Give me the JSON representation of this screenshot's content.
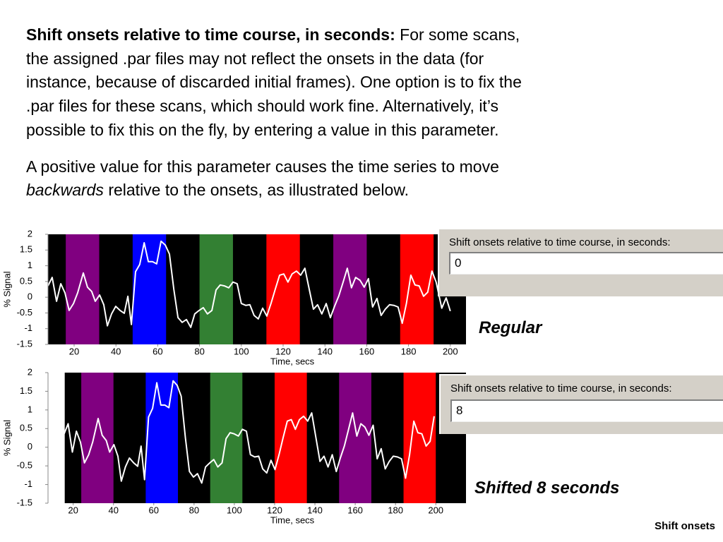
{
  "text": {
    "paragraph1": {
      "lead": "Shift onsets relative to time course, in seconds:",
      "lines": [
        "For some scans,",
        "the assigned .par files may not reflect the onsets in the data (for",
        "instance, because of discarded initial frames). One option is to fix the",
        ".par files for these scans, which should work fine. Alternatively, it’s",
        "possible to fix this on the fly, by entering a value in this parameter."
      ]
    },
    "paragraph2": {
      "line1": "A positive value for this parameter causes the time series to move",
      "emphasis": "backwards",
      "rest": "relative to the onsets, as illustrated below."
    }
  },
  "widgets": [
    {
      "label": "Shift onsets relative to time course, in seconds:",
      "value": "0"
    },
    {
      "label": "Shift onsets relative to time course, in seconds:",
      "value": "8"
    }
  ],
  "captions": [
    "Regular",
    "Shifted 8 seconds"
  ],
  "footer": "Shift onsets",
  "chart_data": [
    {
      "type": "line",
      "xlabel": "Time, secs",
      "ylabel": "% Signal",
      "xlim": [
        7.5,
        207.5
      ],
      "ylim": [
        -1.5,
        2
      ],
      "xticks": [
        20,
        40,
        60,
        80,
        100,
        120,
        140,
        160,
        180,
        200
      ],
      "yticks": [
        2,
        1.5,
        1,
        0.5,
        0,
        -0.5,
        -1,
        -1.5
      ],
      "background": {
        "start": 7.5,
        "end": 207.5,
        "color": "#000000"
      },
      "blocks": [
        {
          "start": 16,
          "end": 32,
          "color": "#800080"
        },
        {
          "start": 48,
          "end": 64,
          "color": "#0000ff"
        },
        {
          "start": 80,
          "end": 96,
          "color": "#338033"
        },
        {
          "start": 112,
          "end": 128,
          "color": "#ff0000"
        },
        {
          "start": 144,
          "end": 160,
          "color": "#800080"
        },
        {
          "start": 176,
          "end": 192,
          "color": "#ff0000"
        }
      ],
      "series": [
        {
          "color": "#ffffff",
          "x": [
            7.5,
            9.5,
            11.6,
            13.6,
            15.6,
            17.6,
            19.7,
            21.7,
            24.4,
            26.4,
            28.4,
            30.1,
            32.2,
            34.2,
            35.9,
            37.9,
            39.9,
            42.0,
            44.0,
            45.7,
            47.4,
            49.4,
            51.4,
            53.5,
            55.5,
            57.5,
            59.5,
            61.6,
            63.6,
            65.6,
            67.7,
            69.7,
            71.7,
            73.7,
            75.8,
            77.7,
            79.8,
            81.8,
            83.8,
            85.9,
            87.9,
            89.9,
            91.9,
            94.0,
            96.0,
            98.0,
            100.0,
            102.1,
            104.1,
            106.1,
            108.1,
            110.2,
            112.2,
            114.2,
            116.2,
            118.3,
            120.3,
            122.3,
            124.3,
            126.4,
            128.4,
            130.4,
            132.5,
            134.5,
            136.5,
            138.5,
            140.6,
            142.6,
            144.6,
            146.6,
            148.7,
            150.7,
            152.7,
            154.7,
            156.8,
            158.8,
            160.8,
            162.8,
            164.9,
            166.9,
            168.9,
            170.9,
            173.0,
            175.0,
            177.0,
            179.0,
            181.1,
            183.1,
            185.1,
            187.2,
            189.2,
            191.2,
            193.2,
            195.9,
            198.0,
            200.0
          ],
          "values": [
            0.36,
            0.63,
            -0.13,
            0.43,
            0.14,
            -0.42,
            -0.2,
            0.14,
            0.77,
            0.32,
            0.18,
            -0.13,
            0.07,
            -0.24,
            -0.91,
            -0.53,
            -0.29,
            -0.42,
            -0.51,
            0.03,
            -0.87,
            0.81,
            1.04,
            1.73,
            1.13,
            1.13,
            1.06,
            1.78,
            1.66,
            1.37,
            0.25,
            -0.65,
            -0.8,
            -0.71,
            -0.96,
            -0.53,
            -0.42,
            -0.33,
            -0.53,
            -0.42,
            0.23,
            0.39,
            0.36,
            0.3,
            0.48,
            0.43,
            -0.2,
            -0.26,
            -0.24,
            -0.58,
            -0.69,
            -0.35,
            -0.6,
            -0.2,
            0.25,
            0.7,
            0.74,
            0.48,
            0.74,
            0.83,
            0.7,
            0.92,
            0.25,
            -0.38,
            -0.24,
            -0.53,
            -0.2,
            -0.65,
            -0.29,
            0.03,
            0.48,
            0.92,
            0.3,
            0.63,
            0.54,
            0.32,
            0.59,
            -0.31,
            -0.04,
            -0.58,
            -0.38,
            -0.24,
            -0.26,
            -0.31,
            -0.83,
            -0.2,
            0.7,
            0.39,
            0.36,
            0.03,
            0.16,
            0.83,
            0.48,
            -0.35,
            -0.02,
            -0.44
          ]
        }
      ]
    },
    {
      "type": "line",
      "xlabel": "Time, secs",
      "ylabel": "% Signal",
      "xlim": [
        7.5,
        215
      ],
      "ylim": [
        -1.5,
        2
      ],
      "xticks": [
        20,
        40,
        60,
        80,
        100,
        120,
        140,
        160,
        180,
        200
      ],
      "yticks": [
        2,
        1.5,
        1,
        0.5,
        0,
        -0.5,
        -1,
        -1.5
      ],
      "background": {
        "start": 15.8,
        "end": 215,
        "color": "#000000"
      },
      "blocks": [
        {
          "start": 24,
          "end": 40,
          "color": "#800080"
        },
        {
          "start": 56,
          "end": 72,
          "color": "#0000ff"
        },
        {
          "start": 88,
          "end": 104,
          "color": "#338033"
        },
        {
          "start": 120,
          "end": 136,
          "color": "#ff0000"
        },
        {
          "start": 152,
          "end": 168,
          "color": "#800080"
        },
        {
          "start": 184,
          "end": 200,
          "color": "#ff0000"
        }
      ],
      "series": [
        {
          "color": "#ffffff",
          "x": [
            15.5,
            17.5,
            19.6,
            21.6,
            23.6,
            25.6,
            27.7,
            29.7,
            32.4,
            34.4,
            36.4,
            38.1,
            40.2,
            42.2,
            43.9,
            45.9,
            47.9,
            50.0,
            52.0,
            53.7,
            55.4,
            57.4,
            59.4,
            61.5,
            63.5,
            65.5,
            67.5,
            69.6,
            71.6,
            73.6,
            75.7,
            77.7,
            79.7,
            81.7,
            83.8,
            85.7,
            87.8,
            89.8,
            91.8,
            93.9,
            95.9,
            97.9,
            99.9,
            102.0,
            104.0,
            106.0,
            108.0,
            110.1,
            112.1,
            114.1,
            116.1,
            118.2,
            120.2,
            122.2,
            124.2,
            126.3,
            128.3,
            130.3,
            132.3,
            134.4,
            136.4,
            138.4,
            140.5,
            142.5,
            144.5,
            146.5,
            148.6,
            150.6,
            152.6,
            154.6,
            156.7,
            158.7,
            160.8,
            162.8,
            164.8,
            166.8,
            168.9,
            170.9,
            172.9,
            174.9,
            176.9,
            178.9,
            181.0,
            183.0,
            185.0,
            187.0,
            189.1,
            191.1,
            193.1,
            195.2,
            197.2,
            199.2
          ],
          "values": [
            0.36,
            0.63,
            -0.13,
            0.43,
            0.14,
            -0.42,
            -0.2,
            0.14,
            0.77,
            0.32,
            0.18,
            -0.13,
            0.07,
            -0.24,
            -0.91,
            -0.53,
            -0.29,
            -0.42,
            -0.51,
            0.03,
            -0.87,
            0.81,
            1.04,
            1.73,
            1.13,
            1.13,
            1.06,
            1.78,
            1.66,
            1.37,
            0.25,
            -0.65,
            -0.8,
            -0.71,
            -0.96,
            -0.53,
            -0.42,
            -0.33,
            -0.53,
            -0.42,
            0.23,
            0.39,
            0.36,
            0.3,
            0.48,
            0.43,
            -0.2,
            -0.26,
            -0.24,
            -0.58,
            -0.69,
            -0.35,
            -0.6,
            -0.2,
            0.25,
            0.7,
            0.74,
            0.48,
            0.74,
            0.83,
            0.7,
            0.92,
            0.25,
            -0.38,
            -0.24,
            -0.53,
            -0.2,
            -0.65,
            -0.29,
            0.03,
            0.48,
            0.92,
            0.3,
            0.63,
            0.54,
            0.32,
            0.59,
            -0.31,
            -0.04,
            -0.58,
            -0.38,
            -0.24,
            -0.26,
            -0.31,
            -0.83,
            -0.2,
            0.7,
            0.39,
            0.36,
            0.03,
            0.16,
            0.83
          ]
        }
      ]
    }
  ]
}
